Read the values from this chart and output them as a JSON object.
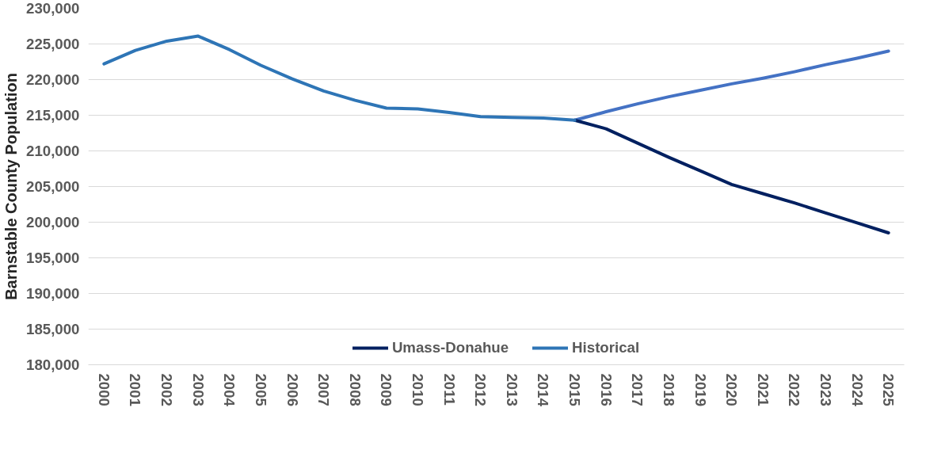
{
  "chart_data": {
    "type": "line",
    "ylabel": "Barnstable County Population",
    "categories": [
      "2000",
      "2001",
      "2002",
      "2003",
      "2004",
      "2005",
      "2006",
      "2007",
      "2008",
      "2009",
      "2010",
      "2011",
      "2012",
      "2013",
      "2014",
      "2015",
      "2016",
      "2017",
      "2018",
      "2019",
      "2020",
      "2021",
      "2022",
      "2023",
      "2024",
      "2025"
    ],
    "series": [
      {
        "color": "#4472c4",
        "values": [
          null,
          null,
          null,
          null,
          null,
          null,
          null,
          null,
          null,
          null,
          null,
          null,
          null,
          null,
          null,
          214300,
          215500,
          216600,
          217600,
          218500,
          219400,
          220200,
          221100,
          222100,
          223000,
          224000
        ]
      },
      {
        "name": "Umass-Donahue",
        "color": "#002060",
        "values": [
          null,
          null,
          null,
          null,
          null,
          null,
          null,
          null,
          null,
          null,
          null,
          null,
          null,
          null,
          null,
          214300,
          213100,
          211100,
          209100,
          207200,
          205300,
          204000,
          202700,
          201300,
          199900,
          198500
        ]
      },
      {
        "name": "Historical",
        "color": "#2e75b6",
        "values": [
          222200,
          224100,
          225400,
          226100,
          224200,
          222000,
          220100,
          218400,
          217100,
          216000,
          215900,
          215400,
          214800,
          214700,
          214600,
          214300,
          null,
          null,
          null,
          null,
          null,
          null,
          null,
          null,
          null,
          null
        ]
      }
    ],
    "ylim": [
      180000,
      230000
    ],
    "yticks": [
      {
        "value": 180000,
        "label": "180,000"
      },
      {
        "value": 185000,
        "label": "185,000"
      },
      {
        "value": 190000,
        "label": "190,000"
      },
      {
        "value": 195000,
        "label": "195,000"
      },
      {
        "value": 200000,
        "label": "200,000"
      },
      {
        "value": 205000,
        "label": "205,000"
      },
      {
        "value": 210000,
        "label": "210,000"
      },
      {
        "value": 215000,
        "label": "215,000"
      },
      {
        "value": 220000,
        "label": "220,000"
      },
      {
        "value": 225000,
        "label": "225,000"
      },
      {
        "value": 230000,
        "label": "230,000"
      }
    ],
    "grid": "y",
    "legend": "bottom",
    "line_style": "solid",
    "marker": "none"
  }
}
